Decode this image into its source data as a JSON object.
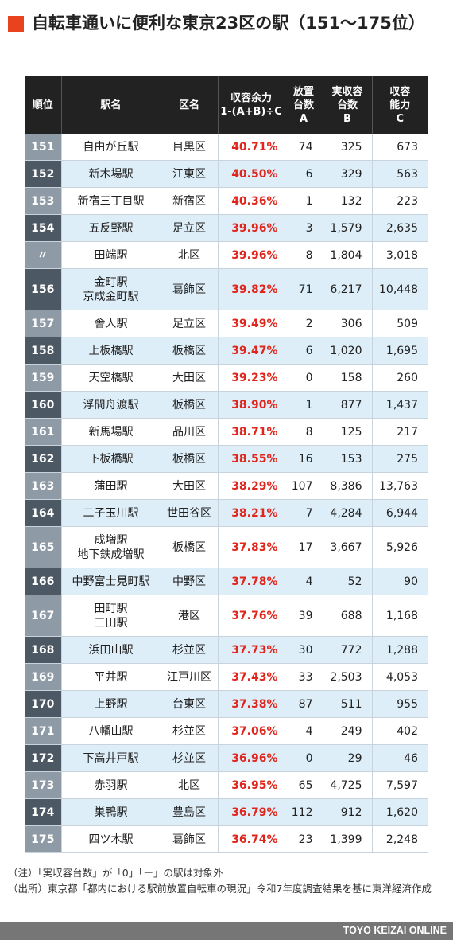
{
  "title": "自転車通いに便利な東京23区の駅（151〜175位）",
  "headers": {
    "rank": "順位",
    "station": "駅名",
    "ward": "区名",
    "ratio": "収容余力\n1-(A+B)÷C",
    "a": "放置\n台数\nA",
    "b": "実収容\n台数\nB",
    "c": "収容\n能力\nC"
  },
  "rows": [
    {
      "rank": "151",
      "station": "自由が丘駅",
      "ward": "目黒区",
      "ratio": "40.71%",
      "a": "74",
      "b": "325",
      "c": "673"
    },
    {
      "rank": "152",
      "station": "新木場駅",
      "ward": "江東区",
      "ratio": "40.50%",
      "a": "6",
      "b": "329",
      "c": "563"
    },
    {
      "rank": "153",
      "station": "新宿三丁目駅",
      "ward": "新宿区",
      "ratio": "40.36%",
      "a": "1",
      "b": "132",
      "c": "223"
    },
    {
      "rank": "154",
      "station": "五反野駅",
      "ward": "足立区",
      "ratio": "39.96%",
      "a": "3",
      "b": "1,579",
      "c": "2,635"
    },
    {
      "rank": "〃",
      "station": "田端駅",
      "ward": "北区",
      "ratio": "39.96%",
      "a": "8",
      "b": "1,804",
      "c": "3,018"
    },
    {
      "rank": "156",
      "station": "金町駅\n京成金町駅",
      "ward": "葛飾区",
      "ratio": "39.82%",
      "a": "71",
      "b": "6,217",
      "c": "10,448"
    },
    {
      "rank": "157",
      "station": "舎人駅",
      "ward": "足立区",
      "ratio": "39.49%",
      "a": "2",
      "b": "306",
      "c": "509"
    },
    {
      "rank": "158",
      "station": "上板橋駅",
      "ward": "板橋区",
      "ratio": "39.47%",
      "a": "6",
      "b": "1,020",
      "c": "1,695"
    },
    {
      "rank": "159",
      "station": "天空橋駅",
      "ward": "大田区",
      "ratio": "39.23%",
      "a": "0",
      "b": "158",
      "c": "260"
    },
    {
      "rank": "160",
      "station": "浮間舟渡駅",
      "ward": "板橋区",
      "ratio": "38.90%",
      "a": "1",
      "b": "877",
      "c": "1,437"
    },
    {
      "rank": "161",
      "station": "新馬場駅",
      "ward": "品川区",
      "ratio": "38.71%",
      "a": "8",
      "b": "125",
      "c": "217"
    },
    {
      "rank": "162",
      "station": "下板橋駅",
      "ward": "板橋区",
      "ratio": "38.55%",
      "a": "16",
      "b": "153",
      "c": "275"
    },
    {
      "rank": "163",
      "station": "蒲田駅",
      "ward": "大田区",
      "ratio": "38.29%",
      "a": "107",
      "b": "8,386",
      "c": "13,763"
    },
    {
      "rank": "164",
      "station": "二子玉川駅",
      "ward": "世田谷区",
      "ratio": "38.21%",
      "a": "7",
      "b": "4,284",
      "c": "6,944"
    },
    {
      "rank": "165",
      "station": "成増駅\n地下鉄成増駅",
      "ward": "板橋区",
      "ratio": "37.83%",
      "a": "17",
      "b": "3,667",
      "c": "5,926"
    },
    {
      "rank": "166",
      "station": "中野富士見町駅",
      "ward": "中野区",
      "ratio": "37.78%",
      "a": "4",
      "b": "52",
      "c": "90"
    },
    {
      "rank": "167",
      "station": "田町駅\n三田駅",
      "ward": "港区",
      "ratio": "37.76%",
      "a": "39",
      "b": "688",
      "c": "1,168"
    },
    {
      "rank": "168",
      "station": "浜田山駅",
      "ward": "杉並区",
      "ratio": "37.73%",
      "a": "30",
      "b": "772",
      "c": "1,288"
    },
    {
      "rank": "169",
      "station": "平井駅",
      "ward": "江戸川区",
      "ratio": "37.43%",
      "a": "33",
      "b": "2,503",
      "c": "4,053"
    },
    {
      "rank": "170",
      "station": "上野駅",
      "ward": "台東区",
      "ratio": "37.38%",
      "a": "87",
      "b": "511",
      "c": "955"
    },
    {
      "rank": "171",
      "station": "八幡山駅",
      "ward": "杉並区",
      "ratio": "37.06%",
      "a": "4",
      "b": "249",
      "c": "402"
    },
    {
      "rank": "172",
      "station": "下高井戸駅",
      "ward": "杉並区",
      "ratio": "36.96%",
      "a": "0",
      "b": "29",
      "c": "46"
    },
    {
      "rank": "173",
      "station": "赤羽駅",
      "ward": "北区",
      "ratio": "36.95%",
      "a": "65",
      "b": "4,725",
      "c": "7,597"
    },
    {
      "rank": "174",
      "station": "巣鴨駅",
      "ward": "豊島区",
      "ratio": "36.79%",
      "a": "112",
      "b": "912",
      "c": "1,620"
    },
    {
      "rank": "175",
      "station": "四ツ木駅",
      "ward": "葛飾区",
      "ratio": "36.74%",
      "a": "23",
      "b": "1,399",
      "c": "2,248"
    }
  ],
  "notes": {
    "note": "（注）「実収容台数」が「0」「ー」の駅は対象外",
    "source": "（出所）東京都「都内における駅前放置自転車の現況」令和7年度調査結果を基に東洋経済作成"
  },
  "footer": "TOYO KEIZAI ONLINE",
  "colors": {
    "accent": "#e8431e",
    "ratio_text": "#e0251c",
    "header_bg": "#222222",
    "alt_row_bg": "#ddeef8",
    "rank_light": "#8e9aa6",
    "rank_dark": "#4c5863"
  }
}
